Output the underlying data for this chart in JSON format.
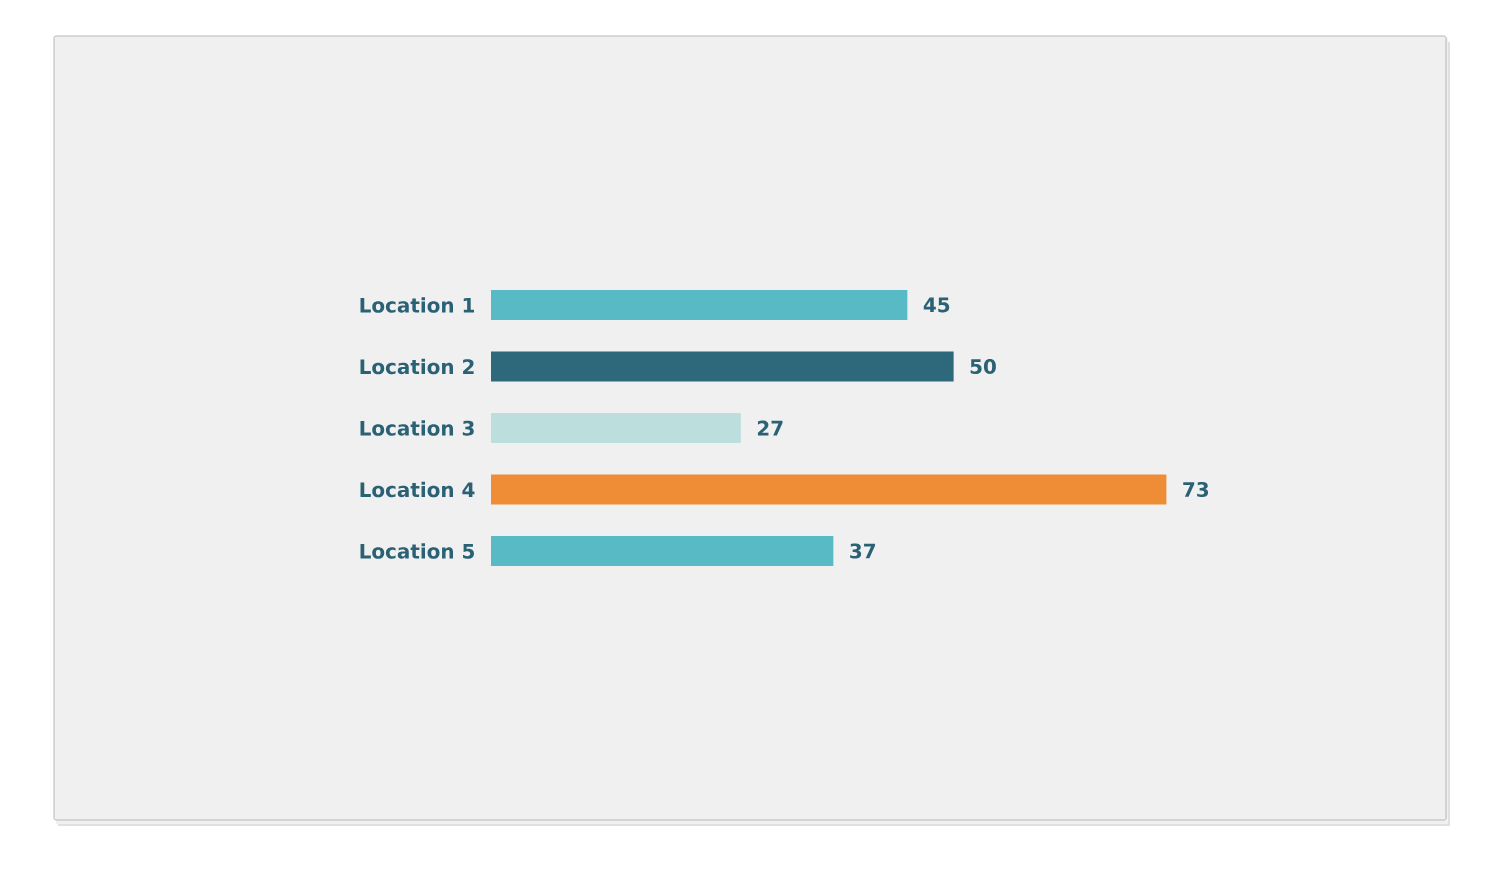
{
  "chart_data": {
    "type": "bar",
    "orientation": "horizontal",
    "categories": [
      "Location 1",
      "Location 2",
      "Location 3",
      "Location 4",
      "Location 5"
    ],
    "values": [
      45,
      50,
      27,
      73,
      37
    ],
    "colors": [
      "#58bac4",
      "#2d687b",
      "#bcdedc",
      "#ef8d36",
      "#58bac4"
    ],
    "data_labels": true
  }
}
